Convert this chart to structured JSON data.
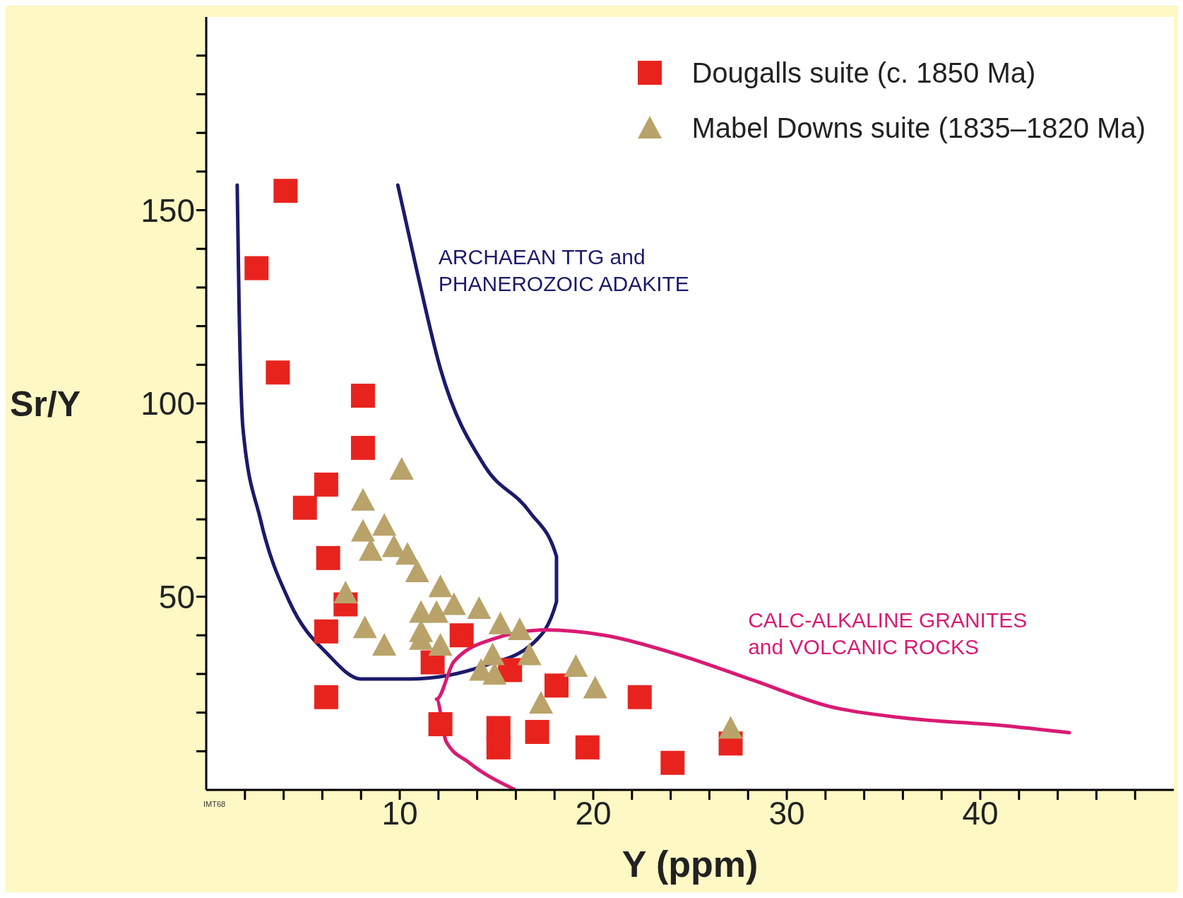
{
  "chart_data": {
    "type": "scatter",
    "xlabel": "Y (ppm)",
    "ylabel": "Sr/Y",
    "xlim": [
      0,
      50
    ],
    "ylim": [
      0,
      200
    ],
    "xticks": [
      {
        "value": 2,
        "label": null
      },
      {
        "value": 4,
        "label": null
      },
      {
        "value": 6,
        "label": null
      },
      {
        "value": 8,
        "label": null
      },
      10,
      {
        "value": 12,
        "label": null
      },
      {
        "value": 14,
        "label": null
      },
      {
        "value": 16,
        "label": null
      },
      {
        "value": 18,
        "label": null
      },
      20,
      {
        "value": 22,
        "label": null
      },
      {
        "value": 24,
        "label": null
      },
      {
        "value": 26,
        "label": null
      },
      {
        "value": 28,
        "label": null
      },
      30,
      {
        "value": 32,
        "label": null
      },
      {
        "value": 34,
        "label": null
      },
      {
        "value": 36,
        "label": null
      },
      {
        "value": 38,
        "label": null
      },
      40,
      {
        "value": 42,
        "label": null
      },
      {
        "value": 44,
        "label": null
      },
      {
        "value": 46,
        "label": null
      },
      {
        "value": 48,
        "label": null
      }
    ],
    "yticks": [
      {
        "value": 10,
        "label": null
      },
      {
        "value": 20,
        "label": null
      },
      {
        "value": 30,
        "label": null
      },
      {
        "value": 40,
        "label": null
      },
      50,
      {
        "value": 60,
        "label": null
      },
      {
        "value": 70,
        "label": null
      },
      {
        "value": 80,
        "label": null
      },
      {
        "value": 90,
        "label": null
      },
      100,
      {
        "value": 110,
        "label": null
      },
      {
        "value": 120,
        "label": null
      },
      {
        "value": 130,
        "label": null
      },
      {
        "value": 140,
        "label": null
      },
      150,
      {
        "value": 160,
        "label": null
      },
      {
        "value": 170,
        "label": null
      },
      {
        "value": 180,
        "label": null
      },
      {
        "value": 190,
        "label": null
      }
    ],
    "legend": "top right",
    "series": [
      {
        "name": "Dougalls suite (c. 1850 Ma)",
        "marker": "square",
        "color": "#e8231e",
        "x": [
          4.1,
          2.6,
          3.7,
          8.1,
          8.1,
          6.2,
          5.1,
          6.3,
          7.2,
          6.2,
          13.2,
          11.7,
          15.7,
          6.2,
          18.1,
          22.4,
          12.1,
          15.1,
          15.1,
          17.1,
          19.7,
          24.1,
          27.1
        ],
        "values": [
          155,
          135,
          108,
          102,
          88.5,
          79,
          73,
          60,
          48,
          41,
          40,
          33,
          31,
          24,
          27,
          24,
          17,
          16,
          11,
          15,
          11,
          7,
          12
        ]
      },
      {
        "name": "Mabel Downs suite (1835–1820 Ma)",
        "marker": "triangle",
        "color": "#b9a36a",
        "x": [
          10.1,
          8.1,
          9.2,
          8.1,
          8.5,
          9.7,
          10.4,
          10.9,
          12.1,
          7.2,
          12.8,
          11.1,
          14.1,
          11.9,
          15.2,
          11.1,
          8.2,
          16.2,
          9.2,
          12.1,
          11.1,
          14.8,
          16.7,
          14.2,
          14.9,
          19.1,
          20.1,
          17.3,
          27.1
        ],
        "values": [
          83,
          75,
          68.5,
          67,
          62,
          63,
          61,
          56.5,
          52.6,
          51,
          48,
          46,
          47,
          46,
          43,
          41,
          42,
          41.5,
          37.5,
          37.5,
          39,
          35,
          35,
          31,
          30,
          32,
          26.4,
          22.5,
          16
        ]
      },
      {
        "type": "line",
        "marker": "none",
        "line_style": "solid",
        "color": "#1c1a6b",
        "x": [
          1.6,
          1.7,
          1.9,
          2.8,
          4.3,
          6.3,
          8,
          10.5,
          14.4,
          16.9,
          18.1,
          18.1,
          16.7,
          14.4,
          12.1,
          10.9,
          9.9
        ],
        "values": [
          156.5,
          124.5,
          93.4,
          70,
          48.7,
          35,
          28.7,
          28.7,
          32.2,
          38,
          48.7,
          60.4,
          72,
          83.7,
          109,
          134,
          156.5
        ]
      },
      {
        "type": "line",
        "marker": "none",
        "line_style": "solid",
        "color": "#d81b73",
        "x": [
          15.9,
          13.6,
          12.4,
          11.9,
          12.8,
          14.8,
          17.5,
          20.6,
          24.4,
          28.3,
          32.2,
          36.1,
          41.1,
          44.6
        ],
        "values": [
          0.2,
          7,
          12.5,
          23.5,
          33.2,
          39,
          41.4,
          40,
          35,
          28.3,
          21.6,
          18.6,
          16.7,
          14.8
        ]
      }
    ],
    "annotations": [
      "ARCHAEAN TTG and\nPHANEROZOIC ADAKITE",
      "CALC-ALKALINE GRANITES\nand VOLCANIC ROCKS",
      "IMT68"
    ]
  }
}
